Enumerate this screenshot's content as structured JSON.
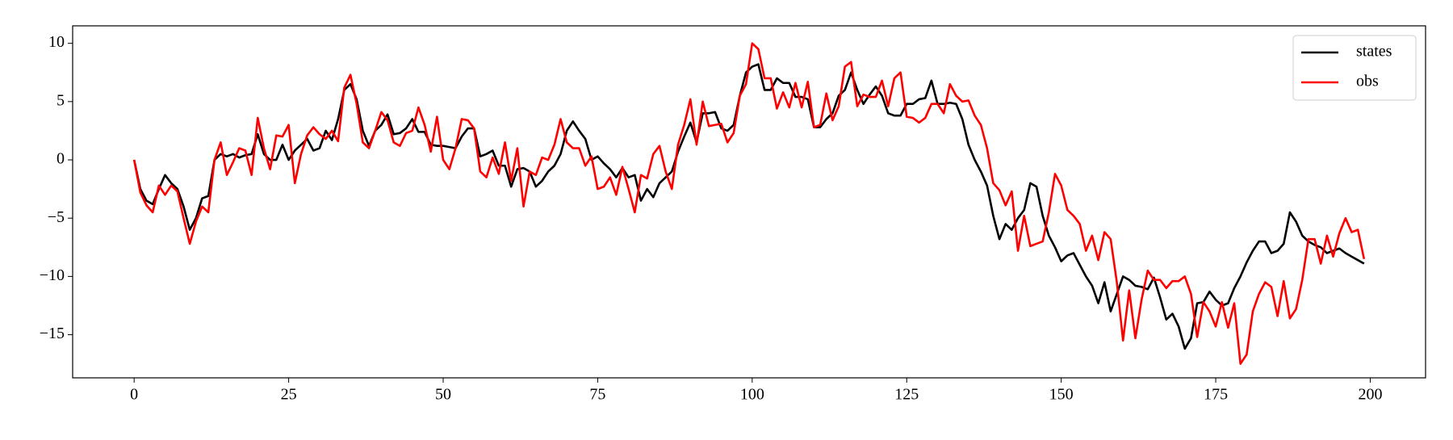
{
  "chart_data": {
    "type": "line",
    "x": [
      0,
      1,
      2,
      3,
      4,
      5,
      6,
      7,
      8,
      9,
      10,
      11,
      12,
      13,
      14,
      15,
      16,
      17,
      18,
      19,
      20,
      21,
      22,
      23,
      24,
      25,
      26,
      27,
      28,
      29,
      30,
      31,
      32,
      33,
      34,
      35,
      36,
      37,
      38,
      39,
      40,
      41,
      42,
      43,
      44,
      45,
      46,
      47,
      48,
      49,
      50,
      51,
      52,
      53,
      54,
      55,
      56,
      57,
      58,
      59,
      60,
      61,
      62,
      63,
      64,
      65,
      66,
      67,
      68,
      69,
      70,
      71,
      72,
      73,
      74,
      75,
      76,
      77,
      78,
      79,
      80,
      81,
      82,
      83,
      84,
      85,
      86,
      87,
      88,
      89,
      90,
      91,
      92,
      93,
      94,
      95,
      96,
      97,
      98,
      99,
      100,
      101,
      102,
      103,
      104,
      105,
      106,
      107,
      108,
      109,
      110,
      111,
      112,
      113,
      114,
      115,
      116,
      117,
      118,
      119,
      120,
      121,
      122,
      123,
      124,
      125,
      126,
      127,
      128,
      129,
      130,
      131,
      132,
      133,
      134,
      135,
      136,
      137,
      138,
      139,
      140,
      141,
      142,
      143,
      144,
      145,
      146,
      147,
      148,
      149,
      150,
      151,
      152,
      153,
      154,
      155,
      156,
      157,
      158,
      159,
      160,
      161,
      162,
      163,
      164,
      165,
      166,
      167,
      168,
      169,
      170,
      171,
      172,
      173,
      174,
      175,
      176,
      177,
      178,
      179,
      180,
      181,
      182,
      183,
      184,
      185,
      186,
      187,
      188,
      189,
      190,
      191,
      192,
      193,
      194,
      195,
      196,
      197,
      198,
      199
    ],
    "series": [
      {
        "name": "states",
        "color": "#000000",
        "values": [
          0,
          -2.5,
          -3.5,
          -3.8,
          -2.5,
          -1.3,
          -2,
          -2.5,
          -4,
          -6,
          -5,
          -3.3,
          -3.1,
          0,
          0.5,
          0.3,
          0.5,
          0.2,
          0.4,
          0.5,
          2.2,
          0.5,
          0,
          0,
          1.3,
          0,
          0.8,
          1.3,
          1.8,
          0.8,
          1,
          2.5,
          1.7,
          3.5,
          6,
          6.5,
          5.2,
          2.5,
          1.2,
          2.5,
          3,
          3.9,
          2.2,
          2.3,
          2.7,
          3.5,
          2.4,
          2.4,
          1.3,
          1.2,
          1.2,
          1.1,
          1,
          2,
          2.7,
          2.7,
          0.3,
          0.5,
          0.8,
          -0.5,
          -0.5,
          -2.3,
          -0.8,
          -0.7,
          -1,
          -2.3,
          -1.8,
          -1,
          -0.5,
          0.5,
          2.5,
          3.3,
          2.5,
          1.8,
          0,
          0.3,
          -0.3,
          -0.8,
          -1.5,
          -0.7,
          -1.5,
          -1.3,
          -3.5,
          -2.5,
          -3.2,
          -2,
          -1.5,
          -1,
          0.7,
          2,
          3.2,
          1.5,
          4,
          4,
          4.1,
          2.7,
          2.5,
          3,
          5.5,
          7.5,
          8,
          8.2,
          6,
          6,
          7,
          6.6,
          6.6,
          5.4,
          5.4,
          5.2,
          2.8,
          2.8,
          3.5,
          4,
          5.5,
          6,
          7.5,
          6,
          4.8,
          5.6,
          6.3,
          5.5,
          4,
          3.8,
          3.8,
          4.8,
          4.8,
          5.2,
          5.3,
          6.8,
          4.8,
          4.8,
          4.9,
          4.8,
          3.5,
          1.3,
          0,
          -1,
          -2.2,
          -4.8,
          -6.8,
          -5.5,
          -6,
          -5,
          -4.3,
          -2,
          -2.3,
          -4.8,
          -6.5,
          -7.5,
          -8.7,
          -8.2,
          -8,
          -9,
          -10,
          -10.8,
          -12.3,
          -10.5,
          -13,
          -11.5,
          -10,
          -10.3,
          -10.8,
          -10.9,
          -11.1,
          -10.1,
          -11.8,
          -13.7,
          -13.2,
          -14.3,
          -16.2,
          -15.3,
          -12.3,
          -12.2,
          -11.3,
          -12,
          -12.5,
          -12.3,
          -11,
          -10,
          -8.8,
          -7.8,
          -7,
          -7,
          -8,
          -7.8,
          -7.2,
          -4.5,
          -5.3,
          -6.5,
          -7,
          -7.3,
          -7.5,
          -8,
          -7.8,
          -7.6,
          -8,
          -8.3,
          -8.6,
          -8.9
        ]
      },
      {
        "name": "obs",
        "color": "#ff0000",
        "values": [
          0,
          -2.8,
          -3.9,
          -4.5,
          -2.2,
          -3,
          -2.2,
          -2.7,
          -5,
          -7.2,
          -5.3,
          -4,
          -4.5,
          0,
          1.5,
          -1.3,
          -0.2,
          1,
          0.8,
          -1.3,
          3.6,
          1,
          -0.8,
          2.1,
          2,
          3,
          -2,
          0.5,
          2.1,
          2.8,
          2.2,
          1.8,
          2.5,
          1.6,
          6.2,
          7.3,
          4.8,
          1.5,
          1,
          2.5,
          4.1,
          3.4,
          1.5,
          1.2,
          2.3,
          2.5,
          4.5,
          3,
          0.7,
          3.7,
          0,
          -0.8,
          1,
          3.5,
          3.4,
          2.7,
          -1,
          -1.5,
          0.2,
          -1.2,
          1.5,
          -1.8,
          1,
          -4,
          -1,
          -1.3,
          0.2,
          0,
          1.3,
          3.5,
          1.5,
          1,
          1,
          -0.5,
          0.3,
          -2.5,
          -2.3,
          -1.5,
          -3,
          -0.6,
          -2.5,
          -4.5,
          -1.3,
          -1.6,
          0.5,
          1.2,
          -1,
          -2.5,
          1.3,
          3,
          5.2,
          1.3,
          5,
          2.9,
          3,
          3.1,
          1.5,
          2.3,
          5.5,
          6.5,
          10,
          9.5,
          7,
          7,
          4.4,
          5.8,
          4.5,
          6.6,
          4.5,
          6.7,
          2.8,
          3,
          5.7,
          3.4,
          4.6,
          8,
          8.4,
          4.6,
          5.6,
          5.4,
          5.4,
          6.8,
          4.6,
          7,
          7.5,
          3.7,
          3.6,
          3.2,
          3.6,
          4.8,
          4.8,
          4,
          6.5,
          5.5,
          5,
          5.1,
          3.8,
          3,
          1,
          -2,
          -2.6,
          -3.9,
          -2.7,
          -7.8,
          -4.8,
          -7.4,
          -7.2,
          -7,
          -4.5,
          -1.2,
          -2.2,
          -4.3,
          -4.8,
          -5.5,
          -7.8,
          -6.5,
          -8.6,
          -6.2,
          -6.8,
          -10.5,
          -15.5,
          -11.2,
          -15.3,
          -12,
          -9.5,
          -10.3,
          -10.3,
          -11,
          -10.4,
          -10.4,
          -10,
          -11.5,
          -15.2,
          -12.2,
          -13,
          -14.3,
          -12.2,
          -14.4,
          -12.3,
          -17.5,
          -16.7,
          -13,
          -11.5,
          -10.5,
          -10.9,
          -13.4,
          -10.4,
          -13.6,
          -12.8,
          -10.3,
          -6.8,
          -6.8,
          -8.9,
          -6.5,
          -8.3,
          -6.3,
          -5,
          -6.2,
          -6,
          -8.5
        ]
      }
    ],
    "xlim": [
      -9.95,
      208.95
    ],
    "ylim": [
      -18.7,
      11.5
    ],
    "xticks": [
      0,
      25,
      50,
      75,
      100,
      125,
      150,
      175,
      200
    ],
    "yticks": [
      {
        "value": -15,
        "label": "−15"
      },
      {
        "value": -10,
        "label": "−10"
      },
      {
        "value": -5,
        "label": "−5"
      },
      0,
      5,
      10
    ],
    "grid": false,
    "legend": "upper right"
  }
}
